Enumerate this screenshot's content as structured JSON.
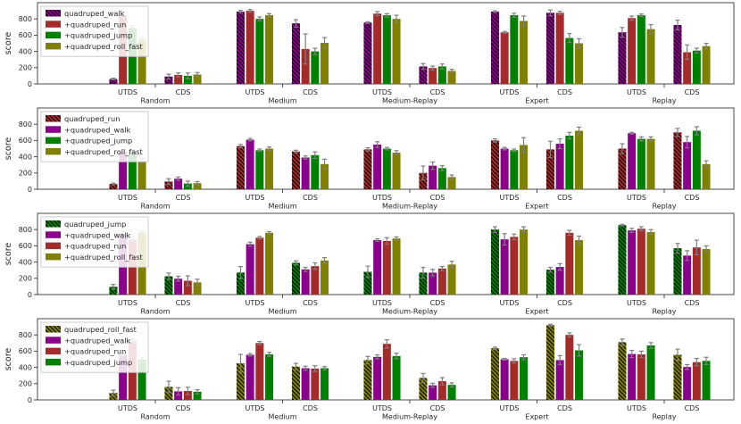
{
  "figure": {
    "background": "#ffffff",
    "ylabel": "score",
    "yticks": [
      0,
      200,
      400,
      600,
      800
    ],
    "ylim": [
      0,
      1000
    ],
    "groups": [
      "Random",
      "Medium",
      "Medium-Replay",
      "Expert",
      "Replay"
    ],
    "conditions": [
      "UTDS",
      "CDS"
    ],
    "value_order": [
      "Random-UTDS",
      "Random-CDS",
      "Medium-UTDS",
      "Medium-CDS",
      "Medium-Replay-UTDS",
      "Medium-Replay-CDS",
      "Expert-UTDS",
      "Expert-CDS",
      "Replay-UTDS",
      "Replay-CDS"
    ],
    "palette": {
      "purple": "#8B008B",
      "brown": "#A52A2A",
      "green": "#008000",
      "olive": "#808000"
    },
    "error_bar_color": "#7F7F7F",
    "spine_color": "#4a4a4a",
    "text_color": "#262626",
    "legend_location": "upper left"
  },
  "chart_data": [
    {
      "type": "bar",
      "ylabel": "score",
      "legend": [
        "quadruped_walk",
        "+quadruped_run",
        "+quadruped_jump",
        "+quadruped_roll_fast"
      ],
      "series": [
        {
          "name": "quadruped_walk",
          "color": "#8B008B",
          "hatched": true,
          "values": [
            60,
            90,
            890,
            745,
            755,
            215,
            890,
            875,
            635,
            725
          ],
          "errors": [
            10,
            30,
            15,
            45,
            10,
            35,
            10,
            35,
            60,
            60
          ]
        },
        {
          "name": "+quadruped_run",
          "color": "#A52A2A",
          "hatched": false,
          "values": [
            840,
            110,
            900,
            430,
            865,
            195,
            635,
            875,
            810,
            390
          ],
          "errors": [
            30,
            25,
            15,
            185,
            25,
            25,
            10,
            20,
            25,
            90
          ]
        },
        {
          "name": "+quadruped_jump",
          "color": "#008000",
          "hatched": false,
          "values": [
            690,
            100,
            800,
            400,
            845,
            215,
            845,
            565,
            845,
            410
          ],
          "errors": [
            25,
            35,
            25,
            40,
            20,
            30,
            25,
            55,
            15,
            30
          ]
        },
        {
          "name": "+quadruped_roll_fast",
          "color": "#808000",
          "hatched": false,
          "values": [
            545,
            115,
            845,
            505,
            800,
            160,
            775,
            500,
            675,
            465
          ],
          "errors": [
            25,
            25,
            20,
            65,
            45,
            20,
            60,
            55,
            55,
            35
          ]
        }
      ]
    },
    {
      "type": "bar",
      "ylabel": "score",
      "legend": [
        "quadruped_run",
        "+quadruped_walk",
        "+quadruped_jump",
        "+quadruped_roll_fast"
      ],
      "series": [
        {
          "name": "quadruped_run",
          "color": "#A52A2A",
          "hatched": true,
          "values": [
            65,
            95,
            530,
            465,
            490,
            200,
            600,
            490,
            500,
            700
          ],
          "errors": [
            10,
            35,
            20,
            15,
            20,
            85,
            20,
            100,
            60,
            50
          ]
        },
        {
          "name": "+quadruped_walk",
          "color": "#8B008B",
          "hatched": false,
          "values": [
            460,
            130,
            610,
            390,
            550,
            290,
            500,
            560,
            690,
            580
          ],
          "errors": [
            30,
            20,
            15,
            20,
            35,
            45,
            15,
            60,
            10,
            70
          ]
        },
        {
          "name": "+quadruped_jump",
          "color": "#008000",
          "hatched": false,
          "values": [
            455,
            70,
            480,
            420,
            500,
            260,
            480,
            660,
            620,
            720
          ],
          "errors": [
            30,
            30,
            15,
            40,
            15,
            30,
            15,
            40,
            25,
            50
          ]
        },
        {
          "name": "+quadruped_roll_fast",
          "color": "#808000",
          "hatched": false,
          "values": [
            345,
            75,
            500,
            310,
            450,
            150,
            545,
            720,
            620,
            310
          ],
          "errors": [
            35,
            20,
            20,
            60,
            25,
            25,
            90,
            45,
            25,
            40
          ]
        }
      ]
    },
    {
      "type": "bar",
      "ylabel": "score",
      "legend": [
        "quadruped_jump",
        "+quadruped_walk",
        "+quadruped_run",
        "+quadruped_roll_fast"
      ],
      "series": [
        {
          "name": "quadruped_jump",
          "color": "#008000",
          "hatched": true,
          "values": [
            95,
            225,
            270,
            390,
            280,
            270,
            800,
            305,
            855,
            570
          ],
          "errors": [
            30,
            40,
            75,
            25,
            70,
            65,
            35,
            30,
            10,
            60
          ]
        },
        {
          "name": "+quadruped_walk",
          "color": "#8B008B",
          "hatched": false,
          "values": [
            745,
            195,
            620,
            310,
            670,
            270,
            680,
            340,
            790,
            480
          ],
          "errors": [
            40,
            30,
            25,
            25,
            15,
            40,
            70,
            40,
            25,
            60
          ]
        },
        {
          "name": "+quadruped_run",
          "color": "#A52A2A",
          "hatched": false,
          "values": [
            675,
            170,
            700,
            350,
            660,
            320,
            710,
            760,
            810,
            580
          ],
          "errors": [
            40,
            60,
            15,
            40,
            40,
            25,
            35,
            30,
            25,
            90
          ]
        },
        {
          "name": "+quadruped_roll_fast",
          "color": "#808000",
          "hatched": false,
          "values": [
            765,
            150,
            760,
            420,
            690,
            370,
            800,
            670,
            770,
            560
          ],
          "errors": [
            20,
            40,
            15,
            35,
            20,
            40,
            35,
            50,
            30,
            40
          ]
        }
      ]
    },
    {
      "type": "bar",
      "ylabel": "score",
      "legend": [
        "quadruped_roll_fast",
        "+quadruped_walk",
        "+quadruped_run",
        "+quadruped_jump"
      ],
      "series": [
        {
          "name": "quadruped_roll_fast",
          "color": "#808000",
          "hatched": true,
          "values": [
            85,
            160,
            450,
            410,
            490,
            270,
            635,
            920,
            710,
            555
          ],
          "errors": [
            35,
            70,
            110,
            40,
            45,
            55,
            15,
            10,
            40,
            70
          ]
        },
        {
          "name": "+quadruped_walk",
          "color": "#8B008B",
          "hatched": false,
          "values": [
            550,
            105,
            555,
            390,
            530,
            180,
            500,
            490,
            565,
            405
          ],
          "errors": [
            20,
            45,
            15,
            25,
            25,
            25,
            10,
            55,
            45,
            30
          ]
        },
        {
          "name": "+quadruped_run",
          "color": "#A52A2A",
          "hatched": false,
          "values": [
            730,
            110,
            700,
            385,
            690,
            230,
            480,
            800,
            560,
            465
          ],
          "errors": [
            20,
            45,
            20,
            35,
            50,
            45,
            25,
            25,
            40,
            45
          ]
        },
        {
          "name": "+quadruped_jump",
          "color": "#008000",
          "hatched": false,
          "values": [
            495,
            100,
            560,
            390,
            540,
            185,
            525,
            610,
            670,
            480
          ],
          "errors": [
            30,
            25,
            25,
            20,
            35,
            25,
            30,
            70,
            35,
            45
          ]
        }
      ]
    }
  ]
}
